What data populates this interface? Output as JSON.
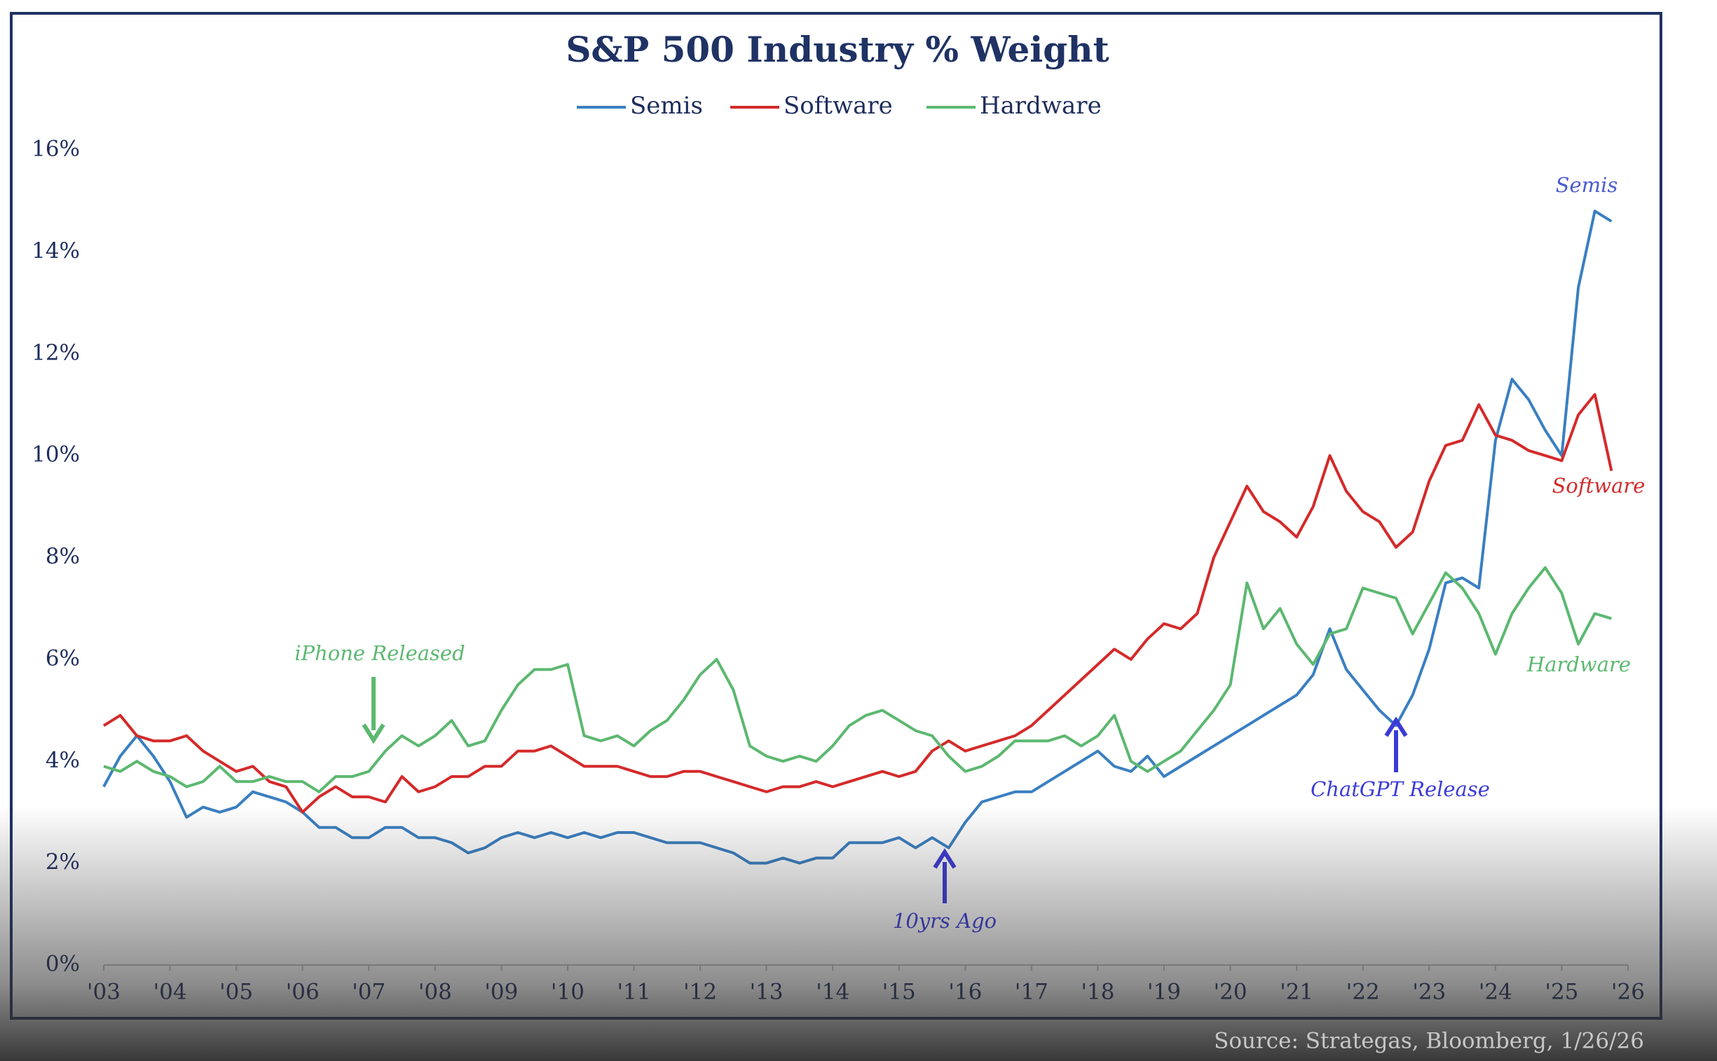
{
  "chart_data": {
    "type": "line",
    "title": "S&P 500 Industry % Weight",
    "source": "Source: Strategas, Bloomberg, 1/26/26",
    "x": [
      2003,
      2003.25,
      2003.5,
      2003.75,
      2004,
      2004.25,
      2004.5,
      2004.75,
      2005,
      2005.25,
      2005.5,
      2005.75,
      2006,
      2006.25,
      2006.5,
      2006.75,
      2007,
      2007.25,
      2007.5,
      2007.75,
      2008,
      2008.25,
      2008.5,
      2008.75,
      2009,
      2009.25,
      2009.5,
      2009.75,
      2010,
      2010.25,
      2010.5,
      2010.75,
      2011,
      2011.25,
      2011.5,
      2011.75,
      2012,
      2012.25,
      2012.5,
      2012.75,
      2013,
      2013.25,
      2013.5,
      2013.75,
      2014,
      2014.25,
      2014.5,
      2014.75,
      2015,
      2015.25,
      2015.5,
      2015.75,
      2016,
      2016.25,
      2016.5,
      2016.75,
      2017,
      2017.25,
      2017.5,
      2017.75,
      2018,
      2018.25,
      2018.5,
      2018.75,
      2019,
      2019.25,
      2019.5,
      2019.75,
      2020,
      2020.25,
      2020.5,
      2020.75,
      2021,
      2021.25,
      2021.5,
      2021.75,
      2022,
      2022.25,
      2022.5,
      2022.75,
      2023,
      2023.25,
      2023.5,
      2023.75,
      2024,
      2024.25,
      2024.5,
      2024.75,
      2025,
      2025.25,
      2025.5,
      2025.75
    ],
    "series": [
      {
        "name": "Semis",
        "color": "#3a7fc1",
        "values": [
          3.5,
          4.1,
          4.5,
          4.1,
          3.6,
          2.9,
          3.1,
          3.0,
          3.1,
          3.4,
          3.3,
          3.2,
          3.0,
          2.7,
          2.7,
          2.5,
          2.5,
          2.7,
          2.7,
          2.5,
          2.5,
          2.4,
          2.2,
          2.3,
          2.5,
          2.6,
          2.5,
          2.6,
          2.5,
          2.6,
          2.5,
          2.6,
          2.6,
          2.5,
          2.4,
          2.4,
          2.4,
          2.3,
          2.2,
          2.0,
          2.0,
          2.1,
          2.0,
          2.1,
          2.1,
          2.4,
          2.4,
          2.4,
          2.5,
          2.3,
          2.5,
          2.3,
          2.8,
          3.2,
          3.3,
          3.4,
          3.4,
          3.6,
          3.8,
          4.0,
          4.2,
          3.9,
          3.8,
          4.1,
          3.7,
          3.9,
          4.1,
          4.3,
          4.5,
          4.7,
          4.9,
          5.1,
          5.3,
          5.7,
          6.6,
          5.8,
          5.4,
          5.0,
          4.7,
          5.3,
          6.2,
          7.5,
          7.6,
          7.4,
          10.3,
          11.5,
          11.1,
          10.5,
          10.0,
          13.3,
          14.8,
          14.6
        ]
      },
      {
        "name": "Software",
        "color": "#d42a2a",
        "values": [
          4.7,
          4.9,
          4.5,
          4.4,
          4.4,
          4.5,
          4.2,
          4.0,
          3.8,
          3.9,
          3.6,
          3.5,
          3.0,
          3.3,
          3.5,
          3.3,
          3.3,
          3.2,
          3.7,
          3.4,
          3.5,
          3.7,
          3.7,
          3.9,
          3.9,
          4.2,
          4.2,
          4.3,
          4.1,
          3.9,
          3.9,
          3.9,
          3.8,
          3.7,
          3.7,
          3.8,
          3.8,
          3.7,
          3.6,
          3.5,
          3.4,
          3.5,
          3.5,
          3.6,
          3.5,
          3.6,
          3.7,
          3.8,
          3.7,
          3.8,
          4.2,
          4.4,
          4.2,
          4.3,
          4.4,
          4.5,
          4.7,
          5.0,
          5.3,
          5.6,
          5.9,
          6.2,
          6.0,
          6.4,
          6.7,
          6.6,
          6.9,
          8.0,
          8.7,
          9.4,
          8.9,
          8.7,
          8.4,
          9.0,
          10.0,
          9.3,
          8.9,
          8.7,
          8.2,
          8.5,
          9.5,
          10.2,
          10.3,
          11.0,
          10.4,
          10.3,
          10.1,
          10.0,
          9.9,
          10.8,
          11.2,
          9.7
        ]
      },
      {
        "name": "Hardware",
        "color": "#5cb870",
        "values": [
          3.9,
          3.8,
          4.0,
          3.8,
          3.7,
          3.5,
          3.6,
          3.9,
          3.6,
          3.6,
          3.7,
          3.6,
          3.6,
          3.4,
          3.7,
          3.7,
          3.8,
          4.2,
          4.5,
          4.3,
          4.5,
          4.8,
          4.3,
          4.4,
          5.0,
          5.5,
          5.8,
          5.8,
          5.9,
          4.5,
          4.4,
          4.5,
          4.3,
          4.6,
          4.8,
          5.2,
          5.7,
          6.0,
          5.4,
          4.3,
          4.1,
          4.0,
          4.1,
          4.0,
          4.3,
          4.7,
          4.9,
          5.0,
          4.8,
          4.6,
          4.5,
          4.1,
          3.8,
          3.9,
          4.1,
          4.4,
          4.4,
          4.4,
          4.5,
          4.3,
          4.5,
          4.9,
          4.0,
          3.8,
          4.0,
          4.2,
          4.6,
          5.0,
          5.5,
          7.5,
          6.6,
          7.0,
          6.3,
          5.9,
          6.5,
          6.6,
          7.4,
          7.3,
          7.2,
          6.5,
          7.1,
          7.7,
          7.4,
          6.9,
          6.1,
          6.9,
          7.4,
          7.8,
          7.3,
          6.3,
          6.9,
          6.8
        ]
      }
    ],
    "annotations": [
      {
        "text": "iPhone Released",
        "color": "#5cb870"
      },
      {
        "text": "10yrs Ago",
        "color": "#3b3bd8"
      },
      {
        "text": "ChatGPT Release",
        "color": "#3b3bd8"
      },
      {
        "text": "Semis",
        "color": "#4a5bd0"
      },
      {
        "text": "Software",
        "color": "#d42a2a"
      },
      {
        "text": "Hardware",
        "color": "#5cb870"
      }
    ],
    "xlim": [
      2003,
      2026
    ],
    "xticks": [
      {
        "value": 2003,
        "label": "'03"
      },
      {
        "value": 2004,
        "label": "'04"
      },
      {
        "value": 2005,
        "label": "'05"
      },
      {
        "value": 2006,
        "label": "'06"
      },
      {
        "value": 2007,
        "label": "'07"
      },
      {
        "value": 2008,
        "label": "'08"
      },
      {
        "value": 2009,
        "label": "'09"
      },
      {
        "value": 2010,
        "label": "'10"
      },
      {
        "value": 2011,
        "label": "'11"
      },
      {
        "value": 2012,
        "label": "'12"
      },
      {
        "value": 2013,
        "label": "'13"
      },
      {
        "value": 2014,
        "label": "'14"
      },
      {
        "value": 2015,
        "label": "'15"
      },
      {
        "value": 2016,
        "label": "'16"
      },
      {
        "value": 2017,
        "label": "'17"
      },
      {
        "value": 2018,
        "label": "'18"
      },
      {
        "value": 2019,
        "label": "'19"
      },
      {
        "value": 2020,
        "label": "'20"
      },
      {
        "value": 2021,
        "label": "'21"
      },
      {
        "value": 2022,
        "label": "'22"
      },
      {
        "value": 2023,
        "label": "'23"
      },
      {
        "value": 2024,
        "label": "'24"
      },
      {
        "value": 2025,
        "label": "'25"
      },
      {
        "value": 2026,
        "label": "'26"
      }
    ],
    "ylim": [
      0,
      16
    ],
    "yticks": [
      {
        "value": 0,
        "label": "0%"
      },
      {
        "value": 2,
        "label": "2%"
      },
      {
        "value": 4,
        "label": "4%"
      },
      {
        "value": 6,
        "label": "6%"
      },
      {
        "value": 8,
        "label": "8%"
      },
      {
        "value": 10,
        "label": "10%"
      },
      {
        "value": 12,
        "label": "12%"
      },
      {
        "value": 14,
        "label": "14%"
      },
      {
        "value": 16,
        "label": "16%"
      }
    ],
    "grid": false
  }
}
